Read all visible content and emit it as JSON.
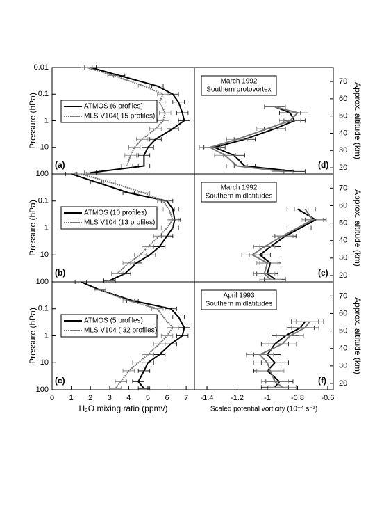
{
  "chart_data": [
    {
      "type": "line",
      "label": "(a)",
      "log_y": true,
      "ylabel": "Pressure (hPa)",
      "xlim": [
        0,
        7.43
      ],
      "ylim": [
        0.01,
        100
      ],
      "yticks": [
        0.01,
        0.1,
        1,
        10,
        100
      ],
      "y": [
        0.01,
        0.02,
        0.05,
        0.1,
        0.2,
        0.5,
        1,
        2,
        5,
        10,
        20,
        50,
        90
      ],
      "series": [
        {
          "name": "ATMOS (6 profiles)",
          "color": "#000000",
          "style": "solid",
          "values": [
            2.0,
            3.5,
            5.5,
            6.3,
            6.6,
            6.8,
            6.9,
            6.3,
            5.4,
            5.0,
            4.8,
            4.8,
            2.0
          ],
          "errors": [
            0.3,
            0.3,
            0.3,
            0.3,
            0.3,
            0.3,
            0.3,
            0.3,
            0.3,
            0.3,
            0.3,
            0.3,
            0.3
          ]
        },
        {
          "name": "MLS V104( 15 profiles)",
          "color": "#777777",
          "style": "dotted",
          "values": [
            1.8,
            3.2,
            4.8,
            5.8,
            5.6,
            5.9,
            5.8,
            5.4,
            4.7,
            4.3,
            4.1,
            3.9,
            null
          ],
          "errors": [
            0.3,
            0.3,
            0.3,
            0.3,
            0.3,
            0.3,
            0.3,
            0.3,
            0.3,
            0.3,
            0.3,
            0.3,
            null
          ]
        }
      ]
    },
    {
      "type": "line",
      "label": "(d)",
      "log_y": true,
      "annotation": [
        "March 1992",
        "Southern protovortex"
      ],
      "y2label": "Approx. altitude (km)",
      "y2lim": [
        16.4,
        78.1
      ],
      "y2ticks": [
        20,
        30,
        40,
        50,
        60,
        70
      ],
      "xlim": [
        -1.483,
        -0.563
      ],
      "ylim": [
        0.01,
        100
      ],
      "y": [
        0.3,
        0.5,
        1,
        2,
        5,
        10,
        20,
        50,
        80
      ],
      "series": [
        {
          "color": "#000000",
          "values": [
            -0.95,
            -0.85,
            -0.82,
            -0.95,
            -1.15,
            -1.35,
            -1.22,
            -1.15,
            -0.82
          ],
          "errors": [
            0.07,
            0.07,
            0.07,
            0.07,
            0.07,
            0.07,
            0.07,
            0.07,
            0.07
          ]
        },
        {
          "color": "#777777",
          "values": [
            -0.95,
            -0.8,
            -0.85,
            -1.0,
            -1.2,
            -1.38,
            -1.28,
            -1.2,
            -0.9
          ],
          "errors": [
            0.07,
            0.07,
            0.07,
            0.07,
            0.07,
            0.07,
            0.07,
            0.07,
            0.07
          ]
        }
      ]
    },
    {
      "type": "line",
      "label": "(b)",
      "log_y": true,
      "ylabel": "Pressure (hPa)",
      "xlim": [
        0,
        7.43
      ],
      "ylim": [
        0.01,
        100
      ],
      "yticks": [
        0.1,
        1,
        10,
        100
      ],
      "y": [
        0.01,
        0.02,
        0.05,
        0.1,
        0.2,
        0.5,
        1,
        2,
        5,
        10,
        20,
        50,
        90
      ],
      "series": [
        {
          "name": "ATMOS (10 profiles)",
          "color": "#000000",
          "style": "solid",
          "values": [
            1.0,
            2.3,
            4.0,
            6.0,
            6.3,
            6.4,
            6.3,
            6.0,
            5.6,
            5.1,
            4.4,
            3.8,
            3.0
          ],
          "errors": [
            0.3,
            0.3,
            0.3,
            0.3,
            0.3,
            0.3,
            0.3,
            0.3,
            0.3,
            0.3,
            0.3,
            0.3,
            0.3
          ]
        },
        {
          "name": "MLS V104 (13 profiles)",
          "color": "#777777",
          "style": "dotted",
          "values": [
            1.5,
            3.0,
            4.8,
            5.8,
            6.1,
            6.3,
            6.0,
            5.6,
            5.0,
            4.6,
            4.0,
            3.4,
            null
          ],
          "errors": [
            0.3,
            0.3,
            0.3,
            0.3,
            0.3,
            0.3,
            0.3,
            0.3,
            0.3,
            0.3,
            0.3,
            0.3,
            null
          ]
        }
      ]
    },
    {
      "type": "line",
      "label": "(e)",
      "log_y": true,
      "annotation": [
        "March 1992",
        "Southern midlatitudes"
      ],
      "y2label": "Approx. altitude (km)",
      "y2lim": [
        16.4,
        78.1
      ],
      "y2ticks": [
        20,
        30,
        40,
        50,
        60,
        70
      ],
      "xlim": [
        -1.483,
        -0.563
      ],
      "ylim": [
        0.01,
        100
      ],
      "y": [
        0.2,
        0.5,
        1,
        2,
        5,
        10,
        20,
        50,
        80
      ],
      "series": [
        {
          "color": "#000000",
          "values": [
            -0.8,
            -0.68,
            -0.78,
            -0.88,
            -0.98,
            -1.05,
            -0.98,
            -1.0,
            -0.95
          ],
          "errors": [
            0.07,
            0.07,
            0.07,
            0.07,
            0.07,
            0.07,
            0.07,
            0.07,
            0.07
          ]
        },
        {
          "color": "#777777",
          "values": [
            -0.75,
            -0.7,
            -0.8,
            -0.9,
            -1.02,
            -1.1,
            -1.0,
            -1.02,
            -0.98
          ],
          "errors": [
            0.07,
            0.07,
            0.07,
            0.07,
            0.07,
            0.07,
            0.07,
            0.07,
            0.07
          ]
        }
      ]
    },
    {
      "type": "line",
      "label": "(c)",
      "log_y": true,
      "ylabel": "Pressure (hPa)",
      "xlabel": "H₂O mixing ratio (ppmv)",
      "xlim": [
        0,
        7.43
      ],
      "xticks": [
        0,
        1,
        2,
        3,
        4,
        5,
        6,
        7
      ],
      "ylim": [
        0.01,
        100
      ],
      "yticks": [
        0.1,
        1,
        10,
        100
      ],
      "y": [
        0.01,
        0.02,
        0.05,
        0.1,
        0.2,
        0.5,
        1,
        2,
        5,
        10,
        20,
        50,
        90
      ],
      "series": [
        {
          "name": "ATMOS (5 profiles)",
          "color": "#000000",
          "style": "solid",
          "values": [
            1.5,
            2.5,
            4.2,
            6.2,
            6.6,
            6.9,
            6.8,
            6.2,
            5.6,
            5.0,
            4.8,
            4.5,
            4.8
          ],
          "errors": [
            0.3,
            0.3,
            0.3,
            0.3,
            0.3,
            0.3,
            0.3,
            0.3,
            0.3,
            0.3,
            0.3,
            0.3,
            0.3
          ]
        },
        {
          "name": "MLS V104 ( 32 profiles)",
          "color": "#777777",
          "style": "dotted",
          "values": [
            null,
            2.5,
            4.0,
            5.5,
            5.8,
            6.3,
            6.0,
            5.6,
            5.0,
            4.5,
            4.0,
            3.6,
            3.3
          ],
          "errors": [
            null,
            0.3,
            0.3,
            0.3,
            0.3,
            0.3,
            0.3,
            0.3,
            0.3,
            0.3,
            0.3,
            0.3,
            0.3
          ]
        }
      ]
    },
    {
      "type": "line",
      "label": "(f)",
      "log_y": true,
      "annotation": [
        "April 1993",
        "Southern midlatitudes"
      ],
      "y2label": "Approx. altitude (km)",
      "y2lim": [
        16.4,
        78.1
      ],
      "y2ticks": [
        20,
        30,
        40,
        50,
        60,
        70
      ],
      "xlabel": "Scaled potential vorticity (10⁻⁴ s⁻¹)",
      "xlim": [
        -1.483,
        -0.563
      ],
      "xticks": [
        -1.4,
        -1.2,
        -1.0,
        -0.8,
        -0.6
      ],
      "ylim": [
        0.01,
        100
      ],
      "y": [
        0.3,
        0.5,
        1,
        2,
        5,
        10,
        20,
        50,
        80
      ],
      "series": [
        {
          "color": "#000000",
          "values": [
            -0.75,
            -0.78,
            -0.88,
            -0.95,
            -1.0,
            -0.95,
            -1.0,
            -0.92,
            -0.95
          ],
          "errors": [
            0.09,
            0.09,
            0.09,
            0.09,
            0.09,
            0.09,
            0.09,
            0.09,
            0.09
          ]
        },
        {
          "color": "#777777",
          "values": [
            -0.72,
            -0.75,
            -0.85,
            -0.9,
            -1.05,
            -1.0,
            -0.98,
            -0.95,
            -0.9
          ],
          "errors": [
            0.09,
            0.09,
            0.09,
            0.09,
            0.09,
            0.09,
            0.09,
            0.09,
            0.09
          ]
        }
      ]
    }
  ]
}
